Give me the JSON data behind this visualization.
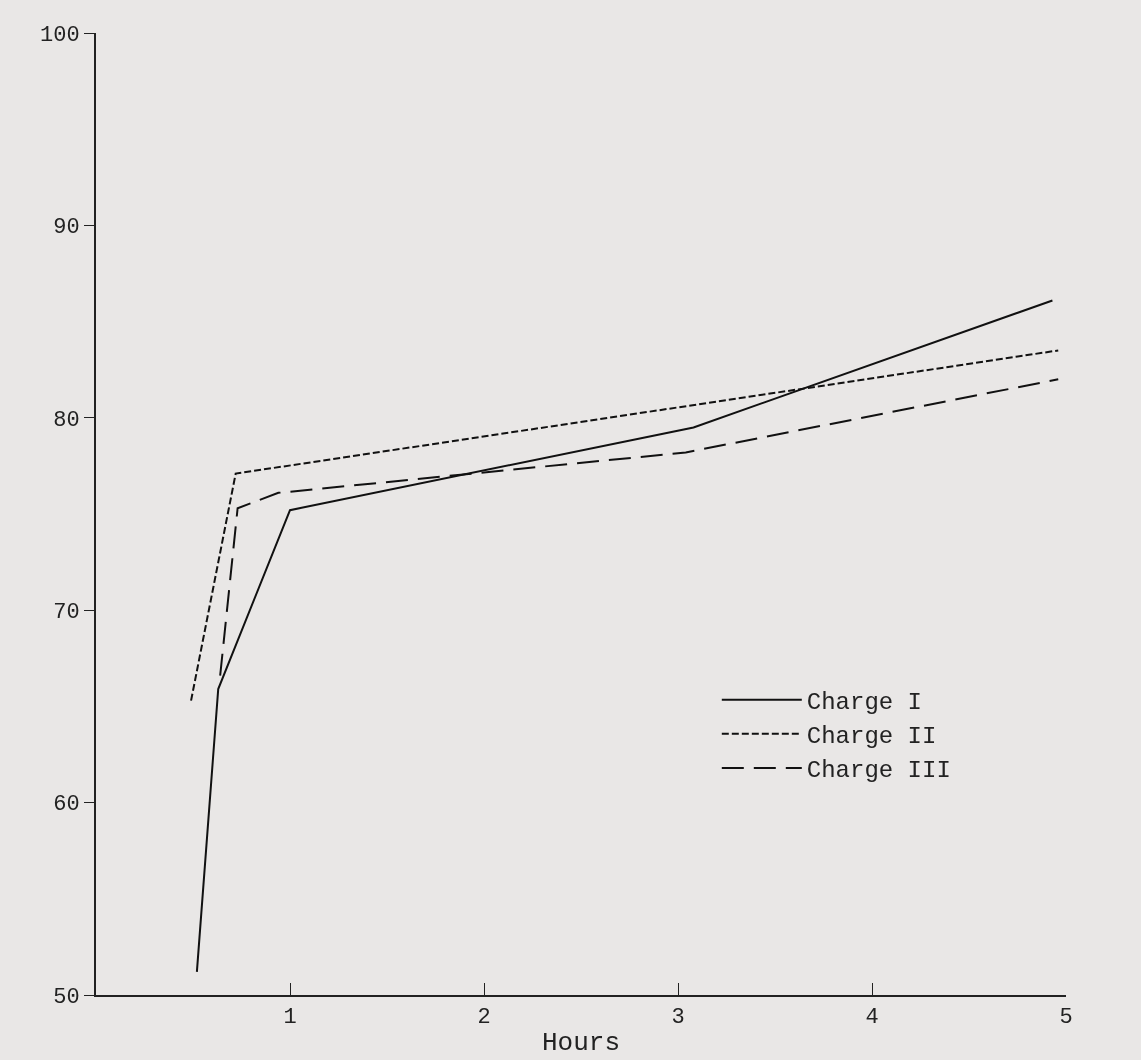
{
  "chart_data": {
    "type": "line",
    "xlabel": "Hours",
    "series": [
      {
        "name": "Charge I",
        "color": "#111111",
        "line_style": "solid",
        "x": [
          0.52,
          0.63,
          1.0,
          3.08,
          4.93
        ],
        "values": [
          51.2,
          65.9,
          75.2,
          79.5,
          86.1
        ]
      },
      {
        "name": "Charge II",
        "color": "#111111",
        "line_style": "dashed",
        "x": [
          0.49,
          0.72,
          4.96
        ],
        "values": [
          65.3,
          77.1,
          83.5
        ]
      },
      {
        "name": "Charge III",
        "color": "#111111",
        "line_style": "dashed",
        "x": [
          0.64,
          0.73,
          0.94,
          3.04,
          4.96
        ],
        "values": [
          66.6,
          75.3,
          76.1,
          78.2,
          82.0
        ]
      }
    ],
    "xlim": [
      0,
      5
    ],
    "xticks": [
      1,
      2,
      3,
      4,
      5
    ],
    "ylim": [
      50,
      100
    ],
    "yticks": [
      50,
      60,
      70,
      80,
      90,
      100
    ],
    "grid": false,
    "legend": "bottom right",
    "marker": "none"
  }
}
